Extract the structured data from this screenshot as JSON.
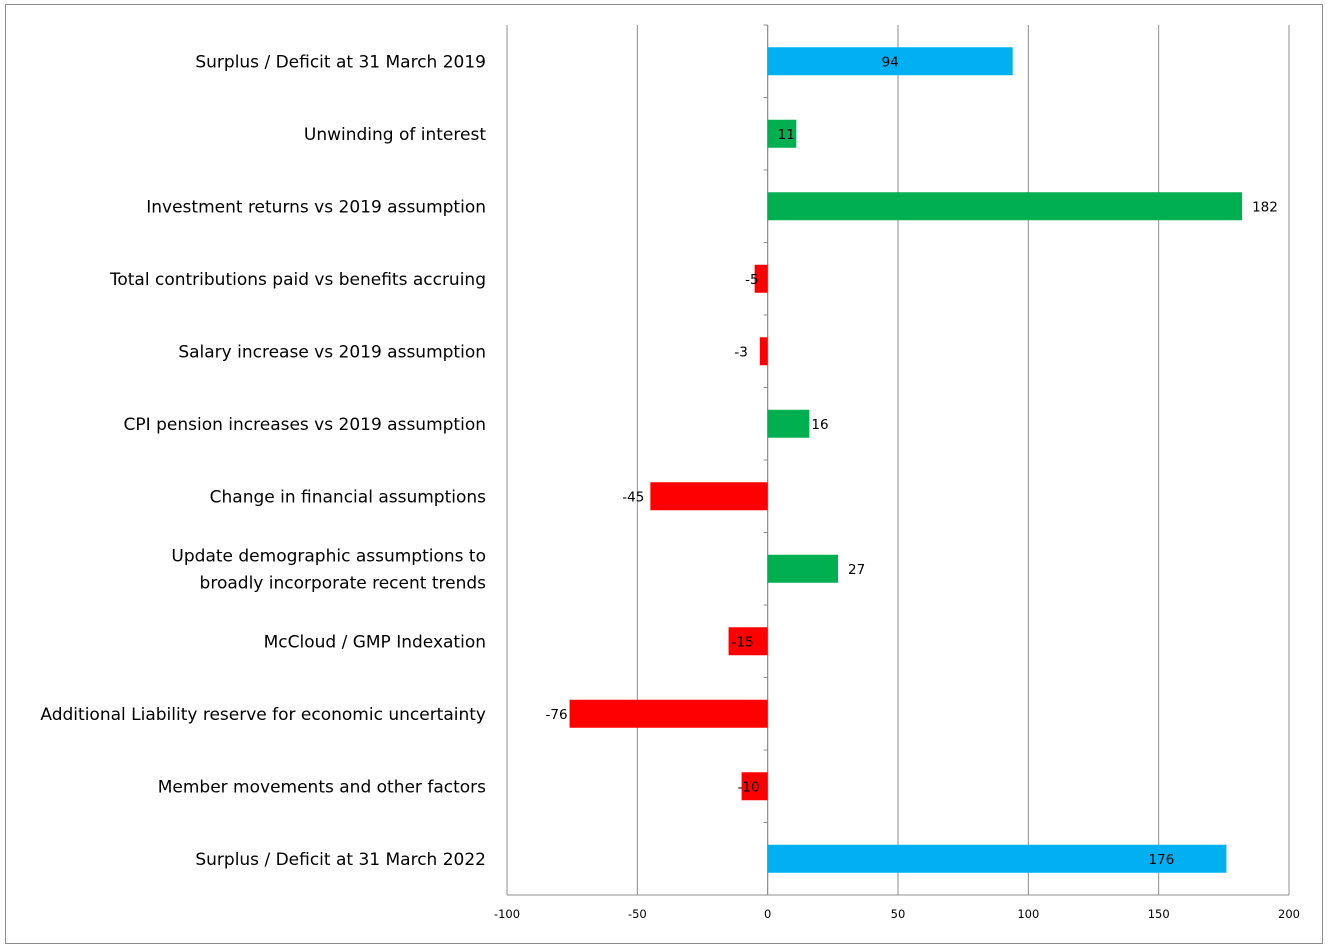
{
  "chart_data": {
    "type": "bar",
    "orientation": "horizontal",
    "title": "",
    "xlabel": "",
    "ylabel": "",
    "xlim": [
      -100,
      200
    ],
    "x_ticks": [
      -100,
      -50,
      0,
      50,
      100,
      150,
      200
    ],
    "x_tick_labels": [
      "-100",
      "-50",
      "0",
      "50",
      "100",
      "150",
      "200"
    ],
    "grid": "vertical",
    "legend": "none",
    "colors": {
      "total": "#00b0f0",
      "positive": "#00b050",
      "negative": "#ff0000",
      "grid": "#8c8c8c"
    },
    "categories": [
      "Surplus / Deficit at 31 March 2019",
      "Unwinding of interest",
      "Investment returns vs 2019 assumption",
      "Total contributions paid vs benefits accruing",
      "Salary increase vs 2019 assumption",
      "CPI pension increases vs 2019 assumption",
      "Change in financial assumptions",
      [
        "Update demographic assumptions to",
        "broadly incorporate recent trends"
      ],
      "McCloud / GMP Indexation",
      "Additional Liability reserve for economic uncertainty",
      "Member movements and other factors",
      "Surplus / Deficit at 31 March 2022"
    ],
    "values": [
      94,
      11,
      182,
      -5,
      -3,
      16,
      -45,
      27,
      -15,
      -76,
      -10,
      176
    ],
    "data_labels": [
      "94",
      "11",
      "182",
      "-5",
      "-3",
      "16",
      "-45",
      "27",
      "-15",
      "-76",
      "-10",
      "176"
    ],
    "bar_kind": [
      "total",
      "positive",
      "positive",
      "negative",
      "negative",
      "positive",
      "negative",
      "positive",
      "negative",
      "negative",
      "negative",
      "total"
    ]
  }
}
